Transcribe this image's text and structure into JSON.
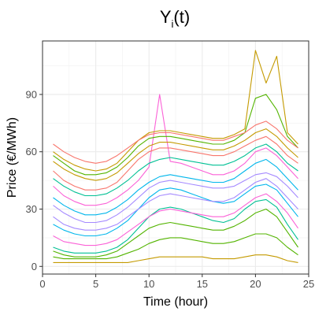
{
  "chart_data": {
    "type": "line",
    "title_main": "Y",
    "title_sub": "i",
    "title_tail": "(t)",
    "xlabel": "Time (hour)",
    "ylabel": "Price (€/MWh)",
    "xlim": [
      0,
      25
    ],
    "ylim": [
      -4,
      118
    ],
    "x_ticks": [
      0,
      5,
      10,
      15,
      20,
      25
    ],
    "y_ticks": [
      0,
      30,
      60,
      90
    ],
    "grid": true,
    "legend": "none",
    "x": [
      1,
      2,
      3,
      4,
      5,
      6,
      7,
      8,
      9,
      10,
      11,
      12,
      13,
      14,
      15,
      16,
      17,
      18,
      19,
      20,
      21,
      22,
      23,
      24
    ],
    "series_colors": [
      "#C49A00",
      "#53B400",
      "#00C094",
      "#00B6EB",
      "#A58AFF",
      "#FB61D7",
      "#F8766D"
    ],
    "series": [
      {
        "values": [
          2,
          2,
          2,
          2,
          2,
          2,
          2,
          2,
          3,
          4,
          5,
          5,
          5,
          5,
          5,
          4,
          4,
          4,
          5,
          6,
          6,
          5,
          3,
          2
        ]
      },
      {
        "values": [
          5,
          4,
          4,
          4,
          4,
          4,
          5,
          7,
          9,
          12,
          14,
          15,
          15,
          14,
          13,
          12,
          12,
          13,
          15,
          17,
          17,
          15,
          10,
          6
        ]
      },
      {
        "values": [
          10,
          8,
          7,
          7,
          7,
          8,
          10,
          14,
          20,
          26,
          30,
          31,
          30,
          28,
          26,
          24,
          23,
          25,
          30,
          34,
          35,
          31,
          22,
          14
        ]
      },
      {
        "values": [
          22,
          19,
          17,
          16,
          16,
          17,
          20,
          24,
          30,
          36,
          40,
          41,
          40,
          38,
          36,
          34,
          33,
          34,
          38,
          42,
          43,
          40,
          33,
          26
        ]
      },
      {
        "values": [
          32,
          28,
          25,
          23,
          23,
          24,
          27,
          31,
          36,
          41,
          44,
          45,
          44,
          43,
          42,
          41,
          41,
          42,
          45,
          48,
          49,
          47,
          42,
          36
        ]
      },
      {
        "values": [
          42,
          37,
          34,
          32,
          32,
          33,
          36,
          40,
          45,
          52,
          90,
          55,
          54,
          52,
          50,
          48,
          48,
          50,
          54,
          60,
          62,
          58,
          52,
          46
        ]
      },
      {
        "values": [
          50,
          45,
          42,
          40,
          40,
          41,
          44,
          50,
          56,
          60,
          62,
          62,
          61,
          60,
          59,
          58,
          58,
          60,
          63,
          66,
          68,
          64,
          58,
          54
        ]
      },
      {
        "values": [
          60,
          56,
          53,
          51,
          50,
          51,
          54,
          60,
          66,
          70,
          71,
          71,
          70,
          69,
          68,
          67,
          67,
          69,
          72,
          113,
          96,
          110,
          70,
          64
        ]
      },
      {
        "values": [
          58,
          54,
          50,
          48,
          48,
          49,
          52,
          57,
          63,
          67,
          68,
          68,
          67,
          66,
          65,
          64,
          64,
          66,
          70,
          88,
          90,
          82,
          68,
          62
        ]
      },
      {
        "values": [
          46,
          42,
          39,
          37,
          37,
          38,
          41,
          45,
          50,
          54,
          56,
          57,
          56,
          55,
          54,
          53,
          53,
          55,
          58,
          62,
          64,
          60,
          54,
          50
        ]
      },
      {
        "values": [
          36,
          32,
          29,
          27,
          27,
          28,
          31,
          35,
          40,
          44,
          47,
          48,
          47,
          46,
          45,
          44,
          44,
          46,
          50,
          54,
          56,
          52,
          46,
          40
        ]
      },
      {
        "values": [
          26,
          22,
          20,
          19,
          19,
          20,
          22,
          26,
          30,
          34,
          37,
          38,
          37,
          36,
          35,
          34,
          34,
          36,
          40,
          44,
          46,
          42,
          36,
          30
        ]
      },
      {
        "values": [
          16,
          13,
          12,
          11,
          11,
          12,
          14,
          18,
          22,
          26,
          29,
          30,
          29,
          28,
          27,
          26,
          26,
          28,
          32,
          36,
          38,
          34,
          28,
          20
        ]
      },
      {
        "values": [
          64,
          60,
          57,
          55,
          54,
          55,
          58,
          62,
          66,
          69,
          70,
          70,
          69,
          68,
          67,
          66,
          66,
          68,
          70,
          74,
          76,
          72,
          66,
          62
        ]
      },
      {
        "values": [
          55,
          51,
          48,
          46,
          45,
          46,
          49,
          54,
          59,
          63,
          65,
          65,
          64,
          63,
          62,
          61,
          61,
          63,
          66,
          70,
          72,
          68,
          62,
          57
        ]
      },
      {
        "values": [
          8,
          6,
          5,
          5,
          5,
          6,
          8,
          12,
          16,
          20,
          22,
          23,
          22,
          21,
          20,
          19,
          19,
          21,
          24,
          28,
          30,
          26,
          18,
          10
        ]
      }
    ]
  }
}
